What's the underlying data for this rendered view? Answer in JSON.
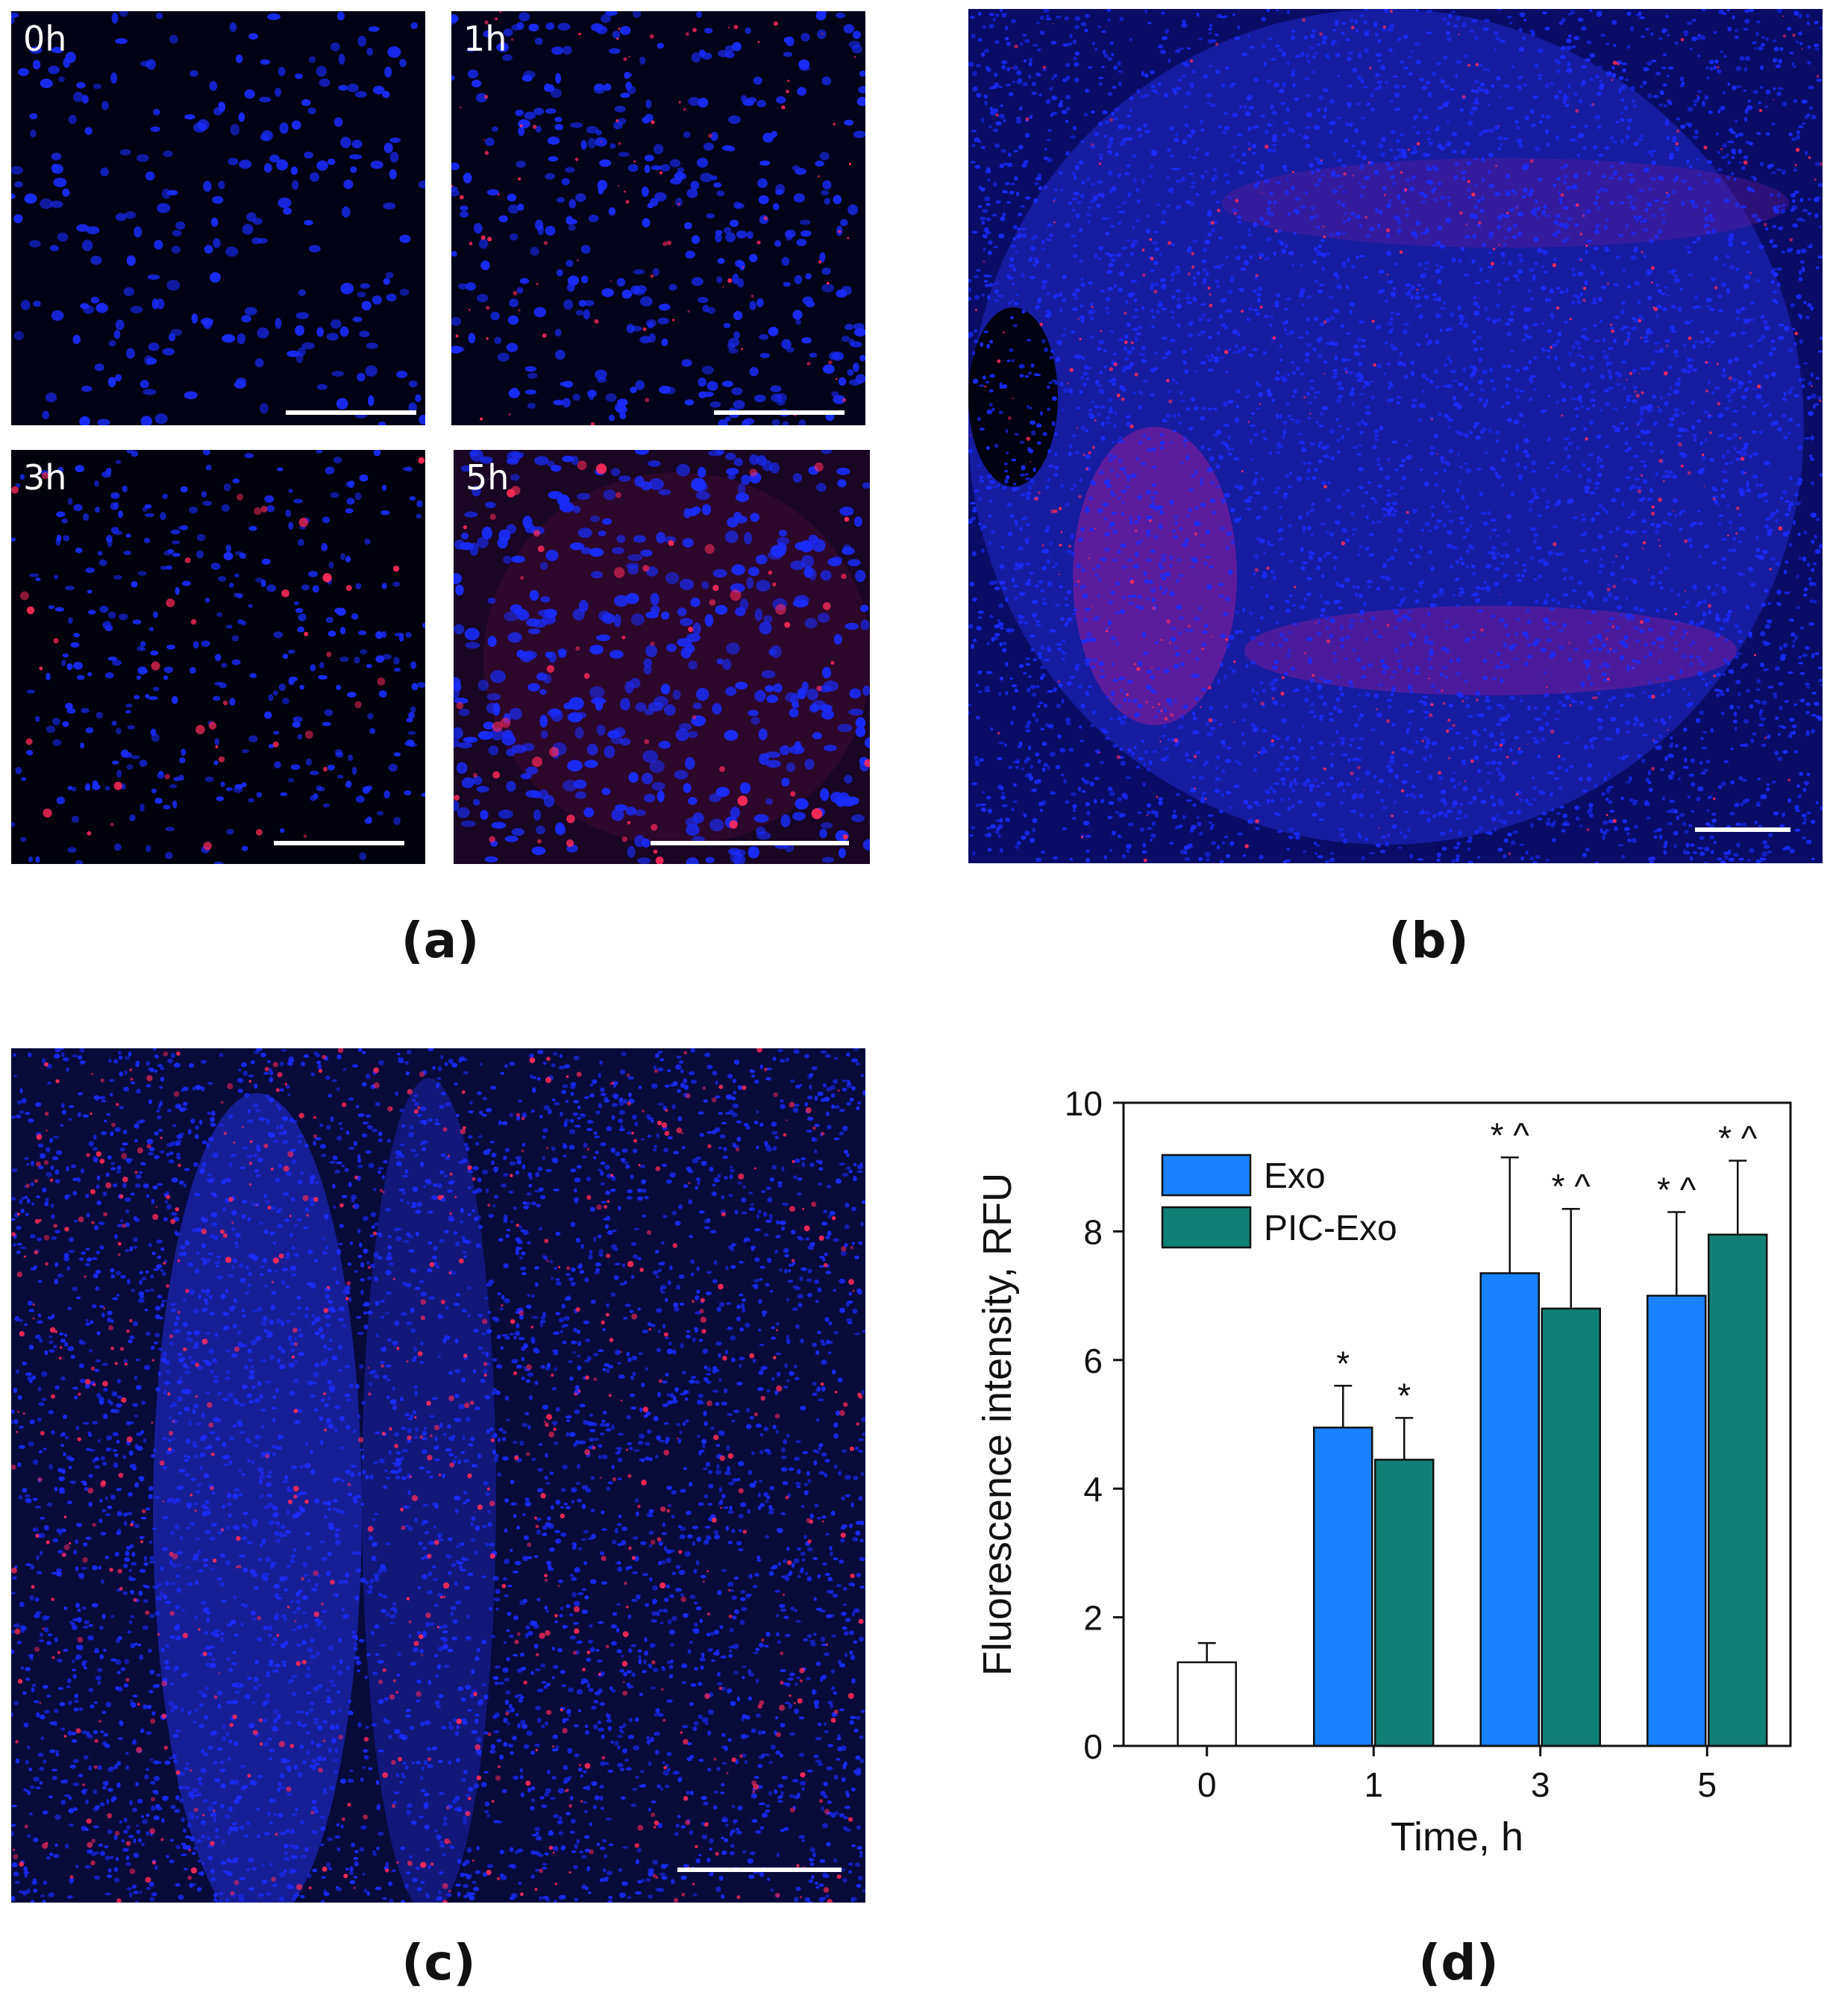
{
  "panel_a": {
    "label": "(a)",
    "images": [
      {
        "time_label": "0h"
      },
      {
        "time_label": "1h"
      },
      {
        "time_label": "3h"
      },
      {
        "time_label": "5h"
      }
    ]
  },
  "panel_b": {
    "label": "(b)"
  },
  "panel_c": {
    "label": "(c)"
  },
  "panel_d": {
    "label": "(d)"
  },
  "colors": {
    "nuclei_blue": "#1a2cff",
    "exosome_red": "#ff2a5a",
    "exo_bar": "#1a82ff",
    "pic_exo_bar": "#0f8073",
    "control_bar": "#ffffff"
  },
  "chart_data": {
    "type": "bar",
    "categories": [
      "0",
      "1",
      "3",
      "5"
    ],
    "xlabel": "Time, h",
    "ylabel": "Fluorescence intensity, RFU",
    "ylim": [
      0,
      10
    ],
    "yticks": [
      0,
      2,
      4,
      6,
      8,
      10
    ],
    "legend_position": "top-left",
    "control": {
      "category": "0",
      "value": 1.3,
      "error": 0.3
    },
    "series": [
      {
        "name": "Exo",
        "values": [
          null,
          4.95,
          7.35,
          7.0
        ],
        "errors": [
          null,
          0.65,
          1.8,
          1.3
        ],
        "annotations": [
          "",
          "*",
          "* ^",
          "* ^"
        ]
      },
      {
        "name": "PIC-Exo",
        "values": [
          null,
          4.45,
          6.8,
          7.95
        ],
        "errors": [
          null,
          0.65,
          1.55,
          1.15
        ],
        "annotations": [
          "",
          "*",
          "* ^",
          "* ^"
        ]
      }
    ]
  }
}
